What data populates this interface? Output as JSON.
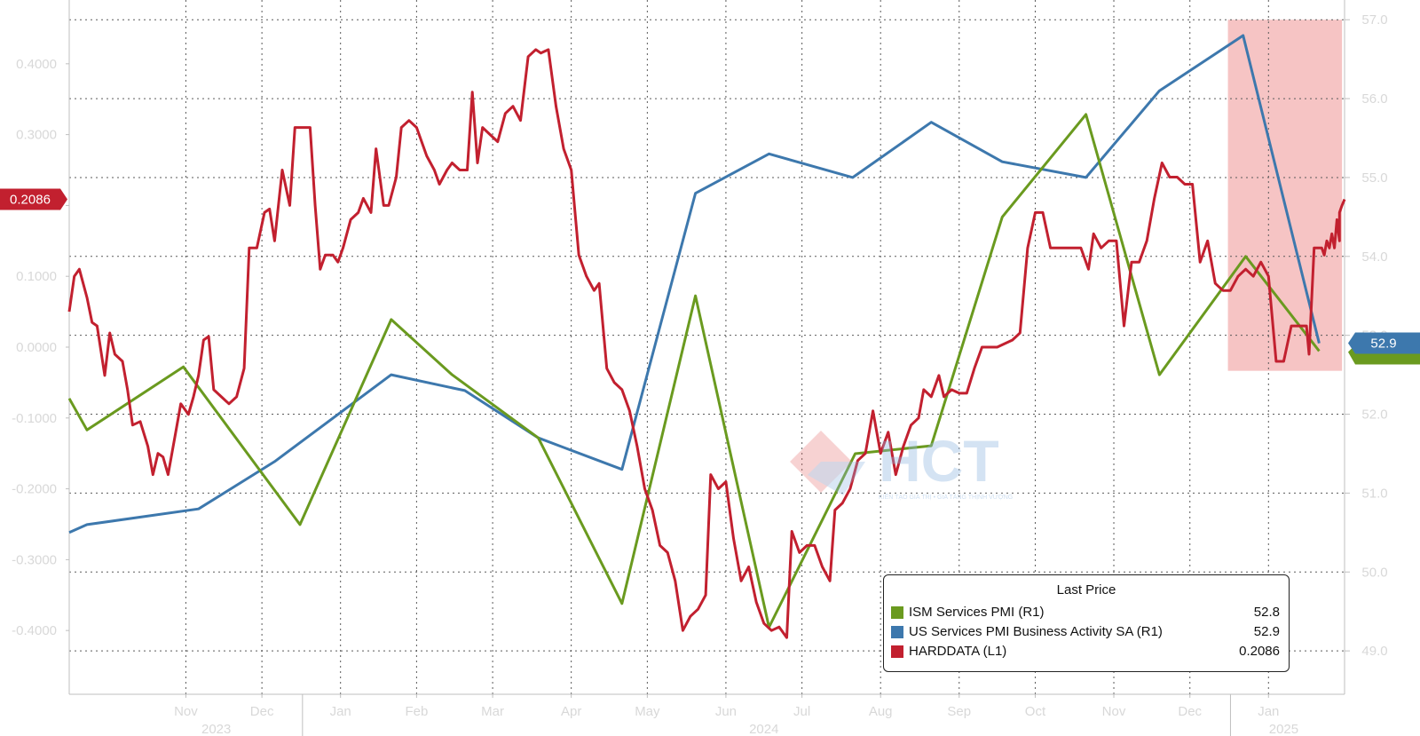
{
  "chart_data": {
    "type": "line",
    "left_axis": {
      "range": [
        -0.49,
        0.49
      ],
      "ticks": [
        "0.4000",
        "0.3000",
        "0.2000",
        "0.1000",
        "0.0000",
        "-0.1000",
        "-0.2000",
        "-0.3000",
        "-0.4000"
      ],
      "tick_values": [
        0.4,
        0.3,
        0.2,
        0.1,
        0.0,
        -0.1,
        -0.2,
        -0.3,
        -0.4
      ]
    },
    "right_axis": {
      "range": [
        48.45,
        57.25
      ],
      "ticks": [
        "57.0",
        "56.0",
        "55.0",
        "54.0",
        "53.0",
        "52.0",
        "51.0",
        "50.0",
        "49.0"
      ],
      "tick_values": [
        57,
        56,
        55,
        54,
        53,
        52,
        51,
        50,
        49
      ]
    },
    "x_range": [
      "2023-10-01",
      "2025-02-15"
    ],
    "month_ticks": [
      {
        "label": "Nov",
        "date": "2023-11-16"
      },
      {
        "label": "Dec",
        "date": "2023-12-16"
      },
      {
        "label": "Jan",
        "date": "2024-01-16"
      },
      {
        "label": "Feb",
        "date": "2024-02-15"
      },
      {
        "label": "Mar",
        "date": "2024-03-16"
      },
      {
        "label": "Apr",
        "date": "2024-04-16"
      },
      {
        "label": "May",
        "date": "2024-05-16"
      },
      {
        "label": "Jun",
        "date": "2024-06-16"
      },
      {
        "label": "Jul",
        "date": "2024-07-16"
      },
      {
        "label": "Aug",
        "date": "2024-08-16"
      },
      {
        "label": "Sep",
        "date": "2024-09-16"
      },
      {
        "label": "Oct",
        "date": "2024-10-16"
      },
      {
        "label": "Nov",
        "date": "2024-11-16"
      },
      {
        "label": "Dec",
        "date": "2024-12-16"
      },
      {
        "label": "Jan",
        "date": "2025-01-16"
      }
    ],
    "year_labels": [
      {
        "label": "2023",
        "date": "2023-11-28"
      },
      {
        "label": "2024",
        "date": "2024-07-01"
      },
      {
        "label": "2025",
        "date": "2025-01-22"
      }
    ],
    "year_dividers": [
      "2024-01-01",
      "2025-01-01"
    ],
    "highlight_region": {
      "start": "2024-12-31",
      "end": "2025-02-14",
      "y_right": [
        52.55,
        57.0
      ],
      "color": "#f6c4c4"
    },
    "series": [
      {
        "name": "ISM Services PMI  (R1)",
        "axis": "right",
        "color": "#6a9a1f",
        "last_price": "52.8",
        "points": [
          [
            "2023-10-01",
            52.2
          ],
          [
            "2023-10-08",
            51.8
          ],
          [
            "2023-11-15",
            52.6
          ],
          [
            "2023-12-31",
            50.6
          ],
          [
            "2024-02-05",
            53.2
          ],
          [
            "2024-02-29",
            52.5
          ],
          [
            "2024-04-03",
            51.7
          ],
          [
            "2024-05-06",
            49.6
          ],
          [
            "2024-06-04",
            53.5
          ],
          [
            "2024-07-03",
            49.3
          ],
          [
            "2024-08-06",
            51.5
          ],
          [
            "2024-09-05",
            51.6
          ],
          [
            "2024-10-03",
            54.5
          ],
          [
            "2024-11-05",
            55.8
          ],
          [
            "2024-12-04",
            52.5
          ],
          [
            "2025-01-07",
            54.0
          ],
          [
            "2025-02-05",
            52.8
          ]
        ]
      },
      {
        "name": "US Services PMI Business Activity SA  (R1)",
        "axis": "right",
        "color": "#3d78ad",
        "last_price": "52.9",
        "points": [
          [
            "2023-10-01",
            50.5
          ],
          [
            "2023-10-08",
            50.6
          ],
          [
            "2023-11-21",
            50.8
          ],
          [
            "2023-12-21",
            51.4
          ],
          [
            "2024-02-05",
            52.5
          ],
          [
            "2024-03-05",
            52.3
          ],
          [
            "2024-04-03",
            51.7
          ],
          [
            "2024-05-06",
            51.3
          ],
          [
            "2024-06-04",
            54.8
          ],
          [
            "2024-07-03",
            55.3
          ],
          [
            "2024-08-05",
            55.0
          ],
          [
            "2024-09-05",
            55.7
          ],
          [
            "2024-10-03",
            55.2
          ],
          [
            "2024-11-05",
            55.0
          ],
          [
            "2024-12-04",
            56.1
          ],
          [
            "2025-01-06",
            56.8
          ],
          [
            "2025-02-05",
            52.9
          ]
        ]
      },
      {
        "name": "HARDDATA  (L1)",
        "axis": "left",
        "color": "#c2202f",
        "last_price": "0.2086",
        "points": [
          [
            "2023-10-01",
            0.05
          ],
          [
            "2023-10-03",
            0.1
          ],
          [
            "2023-10-05",
            0.11
          ],
          [
            "2023-10-08",
            0.07
          ],
          [
            "2023-10-10",
            0.035
          ],
          [
            "2023-10-12",
            0.03
          ],
          [
            "2023-10-15",
            -0.04
          ],
          [
            "2023-10-17",
            0.02
          ],
          [
            "2023-10-19",
            -0.01
          ],
          [
            "2023-10-22",
            -0.02
          ],
          [
            "2023-10-24",
            -0.06
          ],
          [
            "2023-10-26",
            -0.11
          ],
          [
            "2023-10-29",
            -0.105
          ],
          [
            "2023-11-01",
            -0.14
          ],
          [
            "2023-11-03",
            -0.18
          ],
          [
            "2023-11-05",
            -0.15
          ],
          [
            "2023-11-07",
            -0.155
          ],
          [
            "2023-11-09",
            -0.18
          ],
          [
            "2023-11-12",
            -0.12
          ],
          [
            "2023-11-14",
            -0.08
          ],
          [
            "2023-11-17",
            -0.095
          ],
          [
            "2023-11-19",
            -0.07
          ],
          [
            "2023-11-21",
            -0.04
          ],
          [
            "2023-11-23",
            0.01
          ],
          [
            "2023-11-25",
            0.015
          ],
          [
            "2023-11-27",
            -0.06
          ],
          [
            "2023-11-30",
            -0.07
          ],
          [
            "2023-12-03",
            -0.08
          ],
          [
            "2023-12-06",
            -0.07
          ],
          [
            "2023-12-09",
            -0.03
          ],
          [
            "2023-12-11",
            0.14
          ],
          [
            "2023-12-14",
            0.14
          ],
          [
            "2023-12-17",
            0.19
          ],
          [
            "2023-12-19",
            0.195
          ],
          [
            "2023-12-21",
            0.15
          ],
          [
            "2023-12-24",
            0.25
          ],
          [
            "2023-12-27",
            0.2
          ],
          [
            "2023-12-29",
            0.31
          ],
          [
            "2024-01-01",
            0.31
          ],
          [
            "2024-01-04",
            0.31
          ],
          [
            "2024-01-06",
            0.2
          ],
          [
            "2024-01-08",
            0.11
          ],
          [
            "2024-01-10",
            0.13
          ],
          [
            "2024-01-13",
            0.13
          ],
          [
            "2024-01-15",
            0.12
          ],
          [
            "2024-01-17",
            0.14
          ],
          [
            "2024-01-20",
            0.18
          ],
          [
            "2024-01-23",
            0.19
          ],
          [
            "2024-01-25",
            0.21
          ],
          [
            "2024-01-28",
            0.19
          ],
          [
            "2024-01-30",
            0.28
          ],
          [
            "2024-02-02",
            0.2
          ],
          [
            "2024-02-04",
            0.2
          ],
          [
            "2024-02-07",
            0.24
          ],
          [
            "2024-02-09",
            0.31
          ],
          [
            "2024-02-12",
            0.32
          ],
          [
            "2024-02-15",
            0.31
          ],
          [
            "2024-02-19",
            0.27
          ],
          [
            "2024-02-22",
            0.25
          ],
          [
            "2024-02-24",
            0.23
          ],
          [
            "2024-02-27",
            0.25
          ],
          [
            "2024-02-29",
            0.26
          ],
          [
            "2024-03-03",
            0.25
          ],
          [
            "2024-03-06",
            0.25
          ],
          [
            "2024-03-08",
            0.36
          ],
          [
            "2024-03-10",
            0.26
          ],
          [
            "2024-03-12",
            0.31
          ],
          [
            "2024-03-15",
            0.3
          ],
          [
            "2024-03-18",
            0.29
          ],
          [
            "2024-03-21",
            0.33
          ],
          [
            "2024-03-24",
            0.34
          ],
          [
            "2024-03-27",
            0.32
          ],
          [
            "2024-03-30",
            0.41
          ],
          [
            "2024-04-02",
            0.42
          ],
          [
            "2024-04-04",
            0.415
          ],
          [
            "2024-04-07",
            0.42
          ],
          [
            "2024-04-10",
            0.34
          ],
          [
            "2024-04-13",
            0.28
          ],
          [
            "2024-04-16",
            0.25
          ],
          [
            "2024-04-19",
            0.13
          ],
          [
            "2024-04-22",
            0.1
          ],
          [
            "2024-04-25",
            0.08
          ],
          [
            "2024-04-27",
            0.09
          ],
          [
            "2024-04-30",
            -0.03
          ],
          [
            "2024-05-03",
            -0.05
          ],
          [
            "2024-05-06",
            -0.06
          ],
          [
            "2024-05-09",
            -0.09
          ],
          [
            "2024-05-12",
            -0.14
          ],
          [
            "2024-05-15",
            -0.2
          ],
          [
            "2024-05-18",
            -0.23
          ],
          [
            "2024-05-21",
            -0.28
          ],
          [
            "2024-05-24",
            -0.29
          ],
          [
            "2024-05-27",
            -0.33
          ],
          [
            "2024-05-30",
            -0.4
          ],
          [
            "2024-06-02",
            -0.38
          ],
          [
            "2024-06-05",
            -0.37
          ],
          [
            "2024-06-08",
            -0.35
          ],
          [
            "2024-06-10",
            -0.18
          ],
          [
            "2024-06-13",
            -0.2
          ],
          [
            "2024-06-16",
            -0.19
          ],
          [
            "2024-06-19",
            -0.27
          ],
          [
            "2024-06-22",
            -0.33
          ],
          [
            "2024-06-25",
            -0.31
          ],
          [
            "2024-06-28",
            -0.36
          ],
          [
            "2024-07-01",
            -0.39
          ],
          [
            "2024-07-04",
            -0.4
          ],
          [
            "2024-07-07",
            -0.395
          ],
          [
            "2024-07-10",
            -0.41
          ],
          [
            "2024-07-12",
            -0.26
          ],
          [
            "2024-07-15",
            -0.29
          ],
          [
            "2024-07-18",
            -0.28
          ],
          [
            "2024-07-21",
            -0.28
          ],
          [
            "2024-07-24",
            -0.31
          ],
          [
            "2024-07-27",
            -0.33
          ],
          [
            "2024-07-29",
            -0.23
          ],
          [
            "2024-08-01",
            -0.22
          ],
          [
            "2024-08-04",
            -0.2
          ],
          [
            "2024-08-07",
            -0.16
          ],
          [
            "2024-08-10",
            -0.15
          ],
          [
            "2024-08-13",
            -0.09
          ],
          [
            "2024-08-16",
            -0.15
          ],
          [
            "2024-08-19",
            -0.12
          ],
          [
            "2024-08-22",
            -0.18
          ],
          [
            "2024-08-25",
            -0.14
          ],
          [
            "2024-08-28",
            -0.11
          ],
          [
            "2024-08-31",
            -0.1
          ],
          [
            "2024-09-02",
            -0.06
          ],
          [
            "2024-09-05",
            -0.07
          ],
          [
            "2024-09-08",
            -0.04
          ],
          [
            "2024-09-10",
            -0.07
          ],
          [
            "2024-09-13",
            -0.06
          ],
          [
            "2024-09-16",
            -0.065
          ],
          [
            "2024-09-19",
            -0.065
          ],
          [
            "2024-09-22",
            -0.03
          ],
          [
            "2024-09-25",
            0.0
          ],
          [
            "2024-09-28",
            0.0
          ],
          [
            "2024-10-01",
            0.0
          ],
          [
            "2024-10-04",
            0.005
          ],
          [
            "2024-10-07",
            0.01
          ],
          [
            "2024-10-10",
            0.02
          ],
          [
            "2024-10-13",
            0.14
          ],
          [
            "2024-10-16",
            0.19
          ],
          [
            "2024-10-19",
            0.19
          ],
          [
            "2024-10-22",
            0.14
          ],
          [
            "2024-10-25",
            0.14
          ],
          [
            "2024-10-28",
            0.14
          ],
          [
            "2024-10-31",
            0.14
          ],
          [
            "2024-11-03",
            0.14
          ],
          [
            "2024-11-06",
            0.11
          ],
          [
            "2024-11-08",
            0.16
          ],
          [
            "2024-11-11",
            0.14
          ],
          [
            "2024-11-14",
            0.15
          ],
          [
            "2024-11-17",
            0.15
          ],
          [
            "2024-11-20",
            0.03
          ],
          [
            "2024-11-23",
            0.12
          ],
          [
            "2024-11-26",
            0.12
          ],
          [
            "2024-11-29",
            0.15
          ],
          [
            "2024-12-02",
            0.21
          ],
          [
            "2024-12-05",
            0.26
          ],
          [
            "2024-12-08",
            0.24
          ],
          [
            "2024-12-11",
            0.24
          ],
          [
            "2024-12-14",
            0.23
          ],
          [
            "2024-12-17",
            0.23
          ],
          [
            "2024-12-20",
            0.12
          ],
          [
            "2024-12-23",
            0.15
          ],
          [
            "2024-12-26",
            0.09
          ],
          [
            "2024-12-29",
            0.08
          ],
          [
            "2025-01-01",
            0.08
          ],
          [
            "2025-01-04",
            0.1
          ],
          [
            "2025-01-07",
            0.11
          ],
          [
            "2025-01-10",
            0.1
          ],
          [
            "2025-01-13",
            0.12
          ],
          [
            "2025-01-16",
            0.1
          ],
          [
            "2025-01-19",
            -0.02
          ],
          [
            "2025-01-22",
            -0.02
          ],
          [
            "2025-01-25",
            0.03
          ],
          [
            "2025-01-28",
            0.03
          ],
          [
            "2025-01-31",
            0.03
          ],
          [
            "2025-02-01",
            -0.01
          ],
          [
            "2025-02-03",
            0.14
          ],
          [
            "2025-02-05",
            0.14
          ],
          [
            "2025-02-06",
            0.14
          ],
          [
            "2025-02-07",
            0.13
          ],
          [
            "2025-02-08",
            0.15
          ],
          [
            "2025-02-09",
            0.14
          ],
          [
            "2025-02-10",
            0.16
          ],
          [
            "2025-02-11",
            0.14
          ],
          [
            "2025-02-12",
            0.18
          ],
          [
            "2025-02-13",
            0.15
          ],
          [
            "2025-02-13",
            0.19
          ],
          [
            "2025-02-14",
            0.2
          ],
          [
            "2025-02-15",
            0.2086
          ]
        ]
      }
    ]
  },
  "legend": {
    "title": "Last Price",
    "items": [
      {
        "label": "ISM Services PMI  (R1)",
        "value": "52.8",
        "color": "#6a9a1f"
      },
      {
        "label": "US Services PMI Business Activity SA  (R1)",
        "value": "52.9",
        "color": "#3d78ad"
      },
      {
        "label": "HARDDATA  (L1)",
        "value": "0.2086",
        "color": "#c2202f"
      }
    ]
  },
  "badges": {
    "left": {
      "text": "0.2086",
      "color": "#c2202f"
    },
    "right": {
      "text": "52.9",
      "color": "#3d78ad",
      "green_color": "#6a9a1f"
    }
  },
  "watermark": {
    "text": "HCT",
    "subtext": "KIẾN TẠO GIÁ TRỊ • GIA TĂNG THỊNH VƯỢNG",
    "colors": [
      "#e46a6a",
      "#8fb6e0"
    ]
  }
}
